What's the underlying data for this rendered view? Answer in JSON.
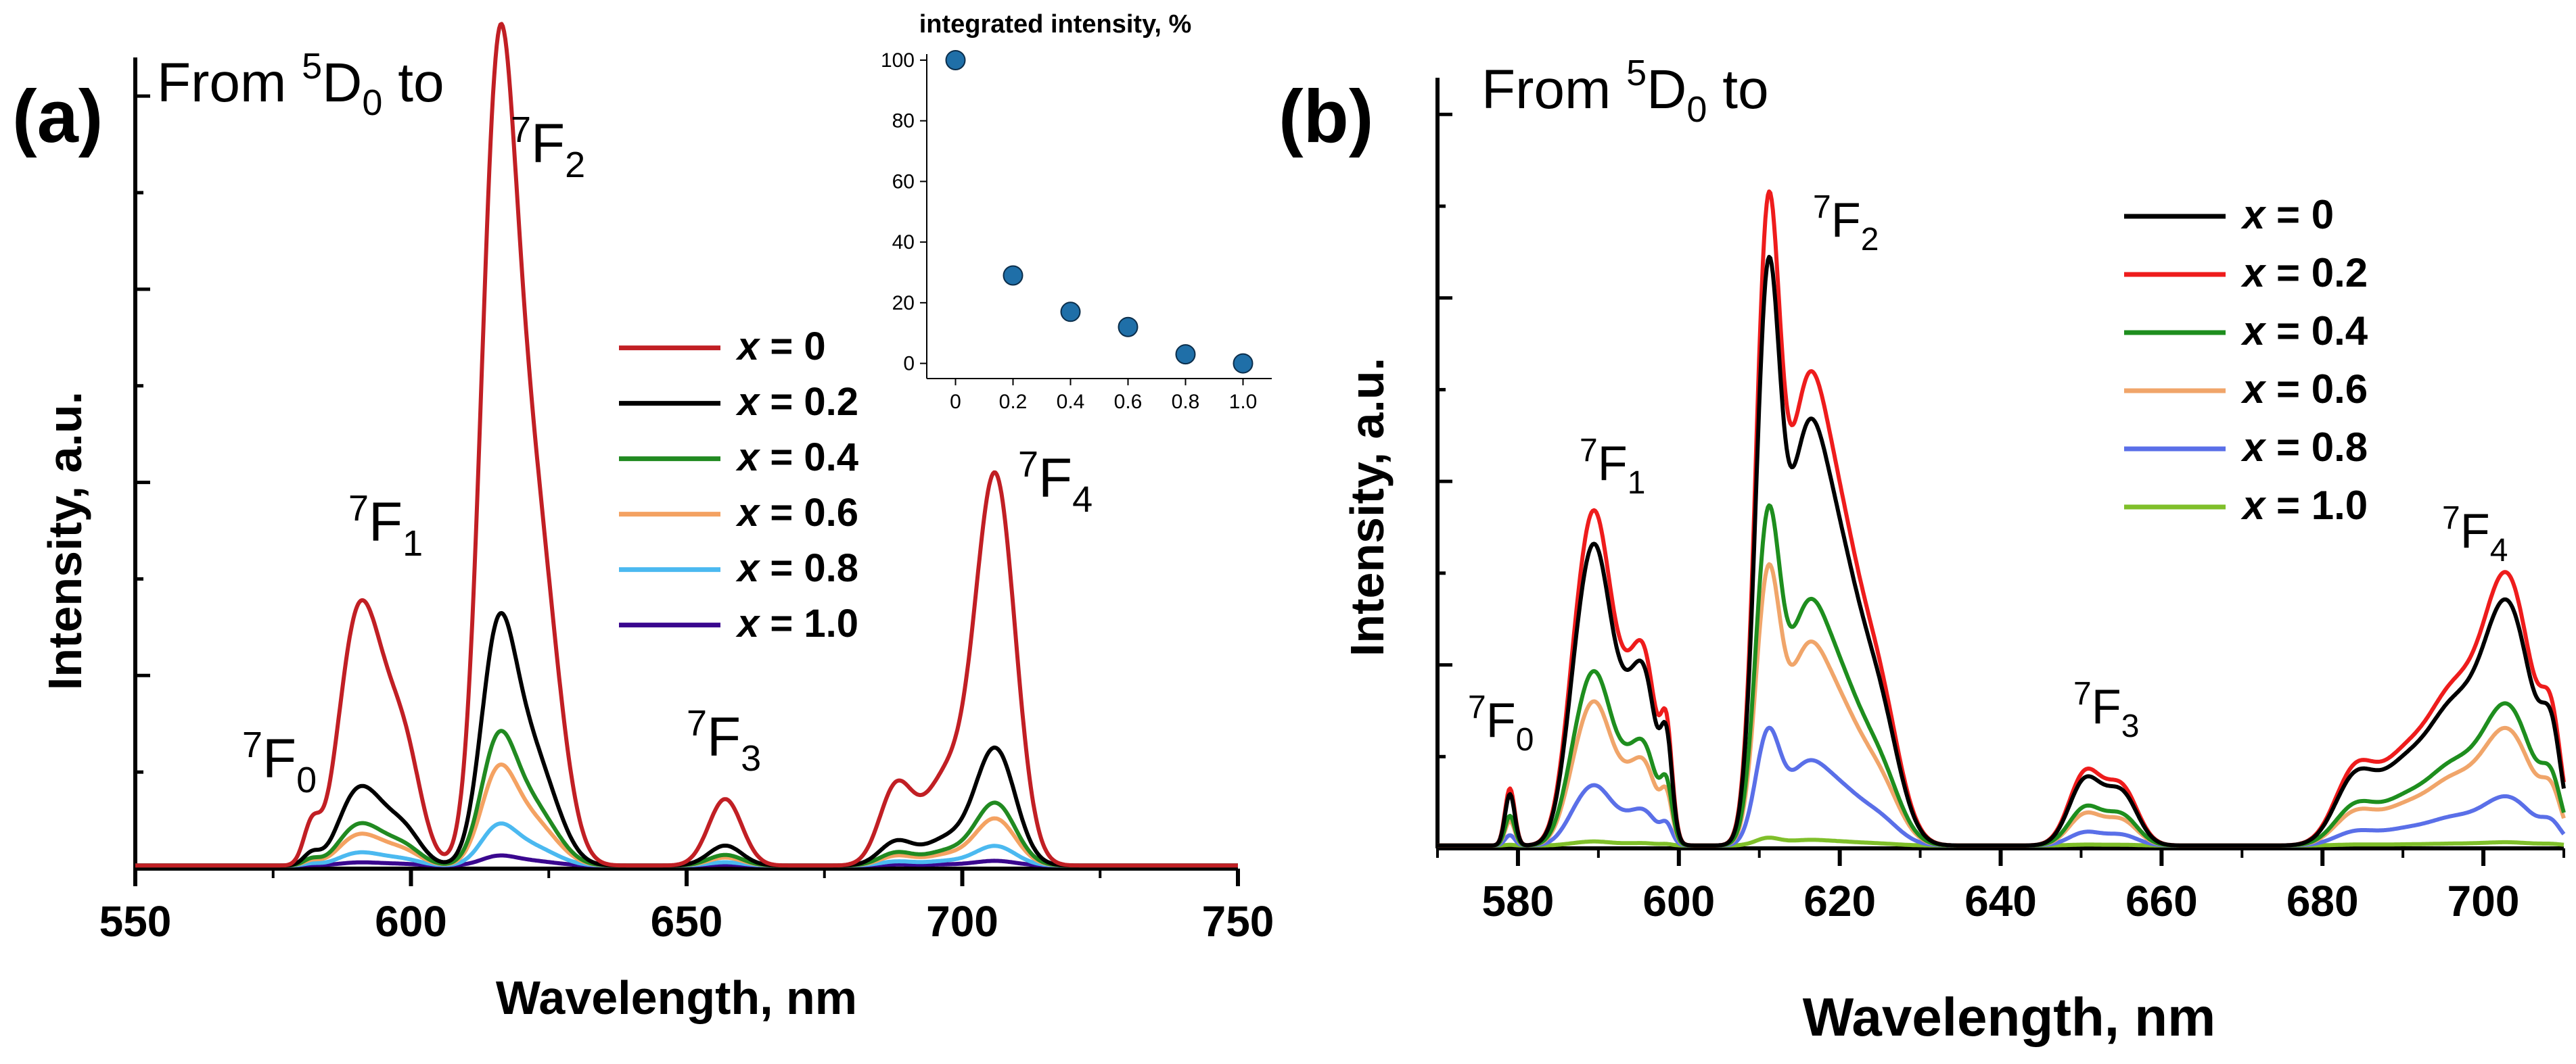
{
  "panel_labels": {
    "a": "(a)",
    "b": "(b)"
  },
  "colors": {
    "a_x0": "#c11f24",
    "a_x02": "#000000",
    "a_x04": "#218a21",
    "a_x06": "#f4a262",
    "a_x08": "#4bb9f0",
    "a_x10": "#3a078f",
    "inset_marker": "#1f6fa8",
    "b_x0": "#000000",
    "b_x02": "#ee1c1c",
    "b_x04": "#1e8e1e",
    "b_x06": "#f0a56a",
    "b_x08": "#5a6fe8",
    "b_x10": "#7fbf2a"
  },
  "chart_data": [
    {
      "id": "panel-a",
      "type": "line",
      "title": "From 5D0 to",
      "title_parts": {
        "main": "From ",
        "sup": "5",
        "letter": "D",
        "sub": "0",
        "tail": " to"
      },
      "xlabel": "Wavelength, nm",
      "ylabel": "Intensity, a.u.",
      "xlim": [
        550,
        750
      ],
      "ylim": [
        0,
        1.05
      ],
      "x_ticks": [
        "550",
        "600",
        "650",
        "700",
        "750"
      ],
      "transition_labels": [
        {
          "sup": "7",
          "letter": "F",
          "sub": "0"
        },
        {
          "sup": "7",
          "letter": "F",
          "sub": "1"
        },
        {
          "sup": "7",
          "letter": "F",
          "sub": "2"
        },
        {
          "sup": "7",
          "letter": "F",
          "sub": "3"
        },
        {
          "sup": "7",
          "letter": "F",
          "sub": "4"
        }
      ],
      "legend": {
        "position": "right-center",
        "var": "x",
        "entries": [
          {
            "var": "x",
            "value": "= 0"
          },
          {
            "var": "x",
            "value": "= 0.2"
          },
          {
            "var": "x",
            "value": "= 0.4"
          },
          {
            "var": "x",
            "value": "= 0.6"
          },
          {
            "var": "x",
            "value": "= 0.8"
          },
          {
            "var": "x",
            "value": "= 1.0"
          }
        ]
      },
      "series": [
        {
          "name": "x = 0",
          "scale": 1.0
        },
        {
          "name": "x = 0.2",
          "scale": 0.3
        },
        {
          "name": "x = 0.4",
          "scale": 0.16
        },
        {
          "name": "x = 0.6",
          "scale": 0.12
        },
        {
          "name": "x = 0.8",
          "scale": 0.05
        },
        {
          "name": "x = 1.0",
          "scale": 0.012
        }
      ],
      "peaks": [
        {
          "center": 582,
          "width": 1.5,
          "height": 0.05
        },
        {
          "center": 589,
          "width": 3.0,
          "height": 0.18
        },
        {
          "center": 593,
          "width": 3.5,
          "height": 0.23
        },
        {
          "center": 599,
          "width": 3.0,
          "height": 0.13
        },
        {
          "center": 615.5,
          "width": 3.0,
          "height": 0.83
        },
        {
          "center": 620,
          "width": 3.8,
          "height": 0.45
        },
        {
          "center": 625,
          "width": 3.5,
          "height": 0.18
        },
        {
          "center": 657,
          "width": 3.0,
          "height": 0.086
        },
        {
          "center": 688,
          "width": 3.0,
          "height": 0.1
        },
        {
          "center": 697,
          "width": 4.0,
          "height": 0.11
        },
        {
          "center": 706,
          "width": 3.6,
          "height": 0.5
        }
      ],
      "inset": {
        "title": "integrated intensity, %",
        "x": [
          0,
          0.2,
          0.4,
          0.6,
          0.8,
          1.0
        ],
        "y": [
          100,
          29,
          17,
          12,
          3,
          0
        ],
        "xlim": [
          -0.1,
          1.1
        ],
        "ylim": [
          -5,
          102
        ],
        "x_ticks": [
          "0",
          "0.2",
          "0.4",
          "0.6",
          "0.8",
          "1.0"
        ],
        "y_ticks": [
          "0",
          "20",
          "40",
          "60",
          "80",
          "100"
        ]
      }
    },
    {
      "id": "panel-b",
      "type": "line",
      "title": "From 5D0 to",
      "title_parts": {
        "main": "From ",
        "sup": "5",
        "letter": "D",
        "sub": "0",
        "tail": " to"
      },
      "xlabel": "Wavelength, nm",
      "ylabel": "Intensity, a.u.",
      "xlim": [
        570,
        710
      ],
      "ylim": [
        0,
        1.08
      ],
      "x_ticks": [
        "580",
        "600",
        "620",
        "640",
        "660",
        "680",
        "700"
      ],
      "transition_labels": [
        {
          "sup": "7",
          "letter": "F",
          "sub": "0"
        },
        {
          "sup": "7",
          "letter": "F",
          "sub": "1"
        },
        {
          "sup": "7",
          "letter": "F",
          "sub": "2"
        },
        {
          "sup": "7",
          "letter": "F",
          "sub": "3"
        },
        {
          "sup": "7",
          "letter": "F",
          "sub": "4"
        }
      ],
      "legend": {
        "position": "top-right",
        "entries": [
          {
            "var": "x",
            "value": "= 0"
          },
          {
            "var": "x",
            "value": "= 0.2"
          },
          {
            "var": "x",
            "value": "= 0.4"
          },
          {
            "var": "x",
            "value": "= 0.6"
          },
          {
            "var": "x",
            "value": "= 0.8"
          },
          {
            "var": "x",
            "value": "= 1.0"
          }
        ]
      },
      "series": [
        {
          "name": "x = 0",
          "scale": 0.9
        },
        {
          "name": "x = 0.2",
          "scale": 1.0
        },
        {
          "name": "x = 0.4",
          "scale": 0.52
        },
        {
          "name": "x = 0.6",
          "scale": 0.43
        },
        {
          "name": "x = 0.8",
          "scale": 0.18
        },
        {
          "name": "x = 1.0",
          "scale": 0.012
        }
      ],
      "peaks": [
        {
          "center": 579,
          "width": 0.6,
          "height": 0.08
        },
        {
          "center": 587.5,
          "width": 1.8,
          "height": 0.22
        },
        {
          "center": 590,
          "width": 1.8,
          "height": 0.35
        },
        {
          "center": 593.5,
          "width": 1.8,
          "height": 0.17
        },
        {
          "center": 596,
          "width": 1.5,
          "height": 0.2
        },
        {
          "center": 598.5,
          "width": 0.7,
          "height": 0.13
        },
        {
          "center": 611,
          "width": 1.5,
          "height": 0.8
        },
        {
          "center": 615.5,
          "width": 2.5,
          "height": 0.53
        },
        {
          "center": 620,
          "width": 2.8,
          "height": 0.38
        },
        {
          "center": 625,
          "width": 2.5,
          "height": 0.18
        },
        {
          "center": 650.5,
          "width": 2.0,
          "height": 0.1
        },
        {
          "center": 655,
          "width": 2.0,
          "height": 0.08
        },
        {
          "center": 684,
          "width": 2.5,
          "height": 0.1
        },
        {
          "center": 690,
          "width": 3.0,
          "height": 0.11
        },
        {
          "center": 696,
          "width": 3.0,
          "height": 0.18
        },
        {
          "center": 703,
          "width": 3.2,
          "height": 0.37
        },
        {
          "center": 708.5,
          "width": 1.2,
          "height": 0.12
        }
      ]
    }
  ]
}
